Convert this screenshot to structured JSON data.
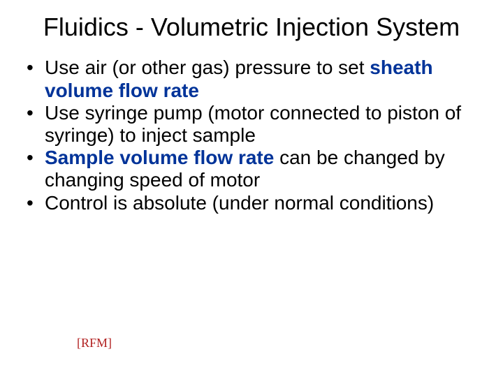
{
  "colors": {
    "background": "#ffffff",
    "text": "#000000",
    "emphasis": "#003399",
    "footer": "#b22222"
  },
  "typography": {
    "title_fontsize": 36,
    "body_fontsize": 28,
    "footer_fontsize": 18,
    "title_font": "Arial",
    "footer_font": "Times New Roman"
  },
  "title": "Fluidics - Volumetric Injection System",
  "bullets": [
    {
      "pre": "Use air (or other gas) pressure to set ",
      "emph": "sheath volume flow rate",
      "post": ""
    },
    {
      "pre": "Use syringe pump (motor connected to piston of syringe) to inject sample",
      "emph": "",
      "post": ""
    },
    {
      "pre": "",
      "emph": "Sample volume flow rate",
      "post": " can be changed by changing speed of motor"
    },
    {
      "pre": "Control is absolute (under normal conditions)",
      "emph": "",
      "post": ""
    }
  ],
  "footer": "[RFM]"
}
